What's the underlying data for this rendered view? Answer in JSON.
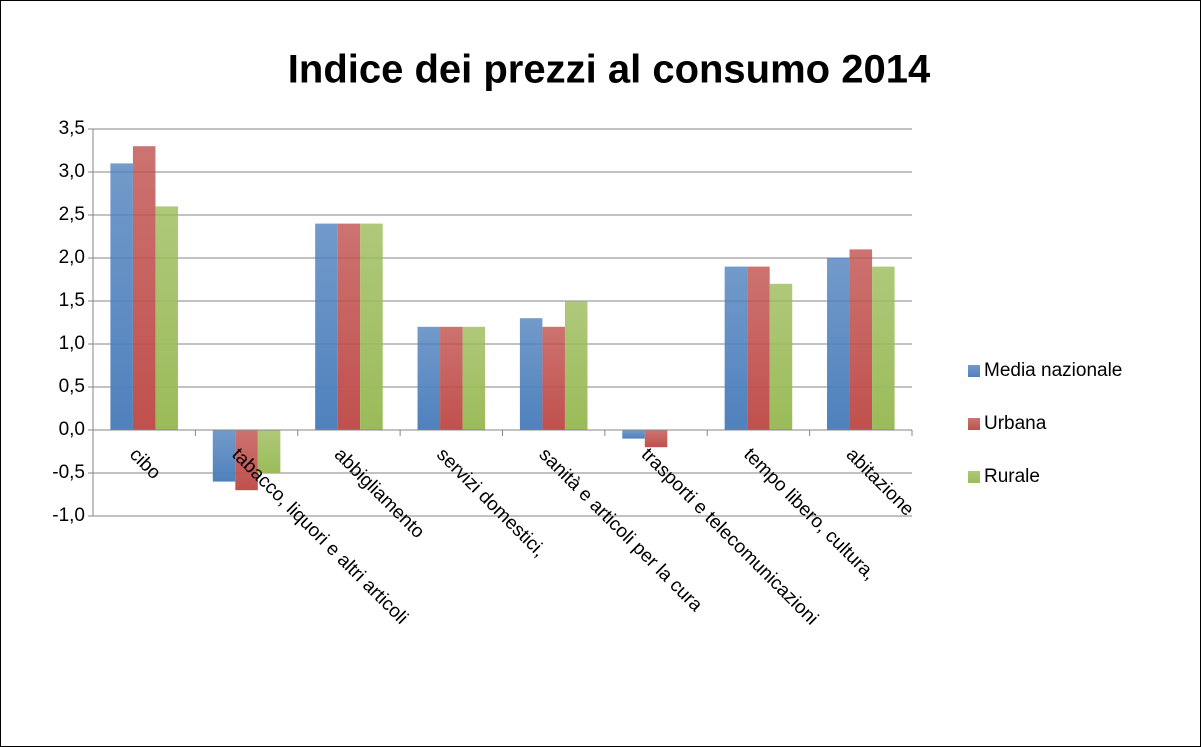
{
  "chart_data": {
    "type": "bar",
    "title": "Indice dei prezzi al consumo 2014",
    "categories": [
      "cibo",
      "tabacco, liquori e altri articoli",
      "abbigliamento",
      "servizi domestici,",
      "sanità e articoli per la cura",
      "trasporti e telecomunicazioni",
      "tempo libero, cultura,",
      "abitazione"
    ],
    "series": [
      {
        "name": "Media nazionale",
        "color": "#4f81bd",
        "values": [
          3.1,
          -0.6,
          2.4,
          1.2,
          1.3,
          -0.1,
          1.9,
          2.0
        ]
      },
      {
        "name": "Urbana",
        "color": "#c0504d",
        "values": [
          3.3,
          -0.7,
          2.4,
          1.2,
          1.2,
          -0.2,
          1.9,
          2.1
        ]
      },
      {
        "name": "Rurale",
        "color": "#9bbb59",
        "values": [
          2.6,
          -0.5,
          2.4,
          1.2,
          1.5,
          0,
          1.7,
          1.9
        ]
      }
    ],
    "ylim": [
      -1,
      3.5
    ],
    "yticks": [
      {
        "value": -1,
        "label": "-1,0"
      },
      {
        "value": -0.5,
        "label": "-0,5"
      },
      {
        "value": 0,
        "label": "0,0"
      },
      {
        "value": 0.5,
        "label": "0,5"
      },
      {
        "value": 1,
        "label": "1,0"
      },
      {
        "value": 1.5,
        "label": "1,5"
      },
      {
        "value": 2,
        "label": "2,0"
      },
      {
        "value": 2.5,
        "label": "2,5"
      },
      {
        "value": 3,
        "label": "3,0"
      },
      {
        "value": 3.5,
        "label": "3,5"
      }
    ],
    "grid": true,
    "legend": "right"
  }
}
